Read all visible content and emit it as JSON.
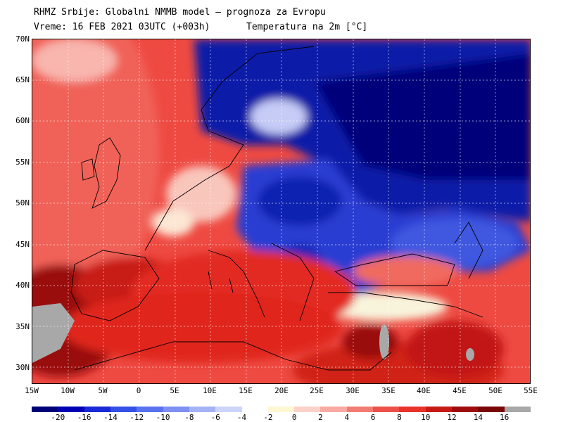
{
  "header": {
    "line1": "RHMZ Srbije: Globalni NMMB model — prognoza za Evropu",
    "line2a": "Vreme: 16 FEB 2021 03UTC (+003h)",
    "line2b": "Temperatura na 2m [°C]"
  },
  "lat_labels": [
    "70N",
    "65N",
    "60N",
    "55N",
    "50N",
    "45N",
    "40N",
    "35N",
    "30N"
  ],
  "lon_labels": [
    "15W",
    "10W",
    "5W",
    "0",
    "5E",
    "10E",
    "15E",
    "20E",
    "25E",
    "30E",
    "35E",
    "40E",
    "45E",
    "50E",
    "55E"
  ],
  "scale_labels": [
    "-20",
    "-16",
    "-14",
    "-12",
    "-10",
    "-8",
    "-6",
    "-4",
    "-2",
    "0",
    "2",
    "4",
    "6",
    "8",
    "10",
    "12",
    "14",
    "16"
  ],
  "scale_colors": [
    "#00007a",
    "#0000b4",
    "#1a2ad8",
    "#3550e6",
    "#5a72ee",
    "#7e90f2",
    "#a6b2f6",
    "#cdd4fa",
    "#ffffff",
    "#fff6d2",
    "#fcd2c8",
    "#f9aaa2",
    "#f27c74",
    "#ec5048",
    "#e8322a",
    "#c81a14",
    "#a00c0c",
    "#7a0606",
    "#a8a8a8"
  ],
  "colors": {
    "cold": "#0a1aa0",
    "warm": "#e8322a",
    "land_gray": "#a8a8a8"
  }
}
